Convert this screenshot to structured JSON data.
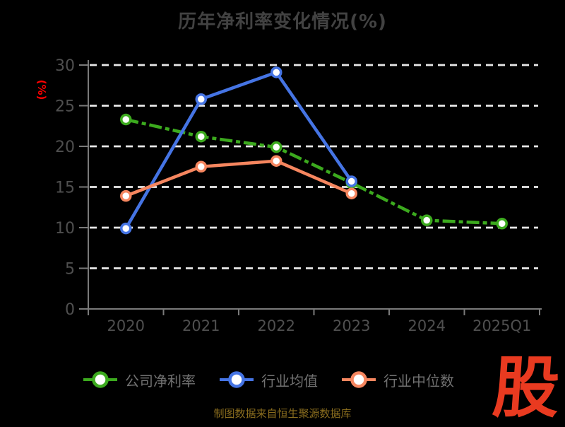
{
  "title": "历年净利率变化情况(%)",
  "y_axis_name": "(%)",
  "source_note": "制图数据来自恒生聚源数据库",
  "logo_text": "股",
  "colors": {
    "background": "#000000",
    "title_text": "#424242",
    "axis_line": "#7a7a7a",
    "tick_label": "#4f4f4f",
    "gridline": "#e8e8e8",
    "legend_label": "#717171",
    "axis_name": "#ff0000",
    "source_text": "#8a6d1e",
    "logo_red": "#e93a20",
    "marker_fill": "#ffffff"
  },
  "chart_data": {
    "type": "line",
    "title": "历年净利率变化情况(%)",
    "xlabel": "",
    "ylabel": "(%)",
    "categories": [
      "2020",
      "2021",
      "2022",
      "2023",
      "2024",
      "2025Q1"
    ],
    "series": [
      {
        "name": "公司净利率",
        "color": "#3caa1e",
        "line_style": "dashed",
        "values": [
          23.3,
          21.2,
          19.9,
          15.5,
          10.9,
          10.5
        ]
      },
      {
        "name": "行业均值",
        "color": "#4574e4",
        "line_style": "solid",
        "values": [
          9.9,
          25.8,
          29.1,
          15.7,
          null,
          null
        ]
      },
      {
        "name": "行业中位数",
        "color": "#f6865f",
        "line_style": "solid",
        "values": [
          13.9,
          17.5,
          18.2,
          14.2,
          null,
          null
        ]
      }
    ],
    "ylim": [
      0,
      30
    ],
    "y_ticks": [
      0,
      5,
      10,
      15,
      20,
      25,
      30
    ],
    "grid": "horizontal-dashed-white",
    "legend_position": "bottom"
  }
}
